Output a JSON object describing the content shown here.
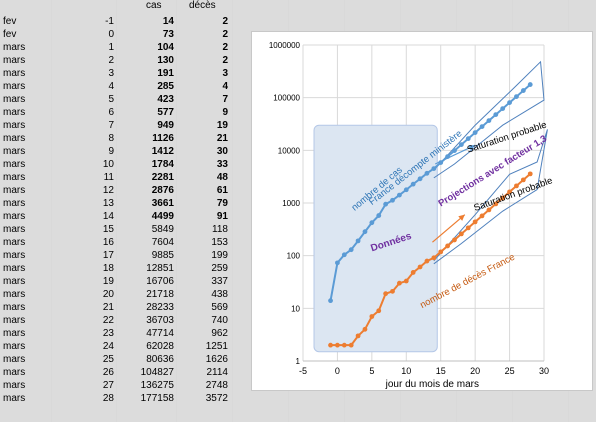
{
  "headers": {
    "cas": "cas",
    "deces": "décès"
  },
  "rows": [
    {
      "month": "fev",
      "day": "-1",
      "cas": "14",
      "deces": "2",
      "bold": true
    },
    {
      "month": "fev",
      "day": "0",
      "cas": "73",
      "deces": "2",
      "bold": true
    },
    {
      "month": "mars",
      "day": "1",
      "cas": "104",
      "deces": "2",
      "bold": true
    },
    {
      "month": "mars",
      "day": "2",
      "cas": "130",
      "deces": "2",
      "bold": true
    },
    {
      "month": "mars",
      "day": "3",
      "cas": "191",
      "deces": "3",
      "bold": true
    },
    {
      "month": "mars",
      "day": "4",
      "cas": "285",
      "deces": "4",
      "bold": true
    },
    {
      "month": "mars",
      "day": "5",
      "cas": "423",
      "deces": "7",
      "bold": true
    },
    {
      "month": "mars",
      "day": "6",
      "cas": "577",
      "deces": "9",
      "bold": true
    },
    {
      "month": "mars",
      "day": "7",
      "cas": "949",
      "deces": "19",
      "bold": true
    },
    {
      "month": "mars",
      "day": "8",
      "cas": "1126",
      "deces": "21",
      "bold": true
    },
    {
      "month": "mars",
      "day": "9",
      "cas": "1412",
      "deces": "30",
      "bold": true
    },
    {
      "month": "mars",
      "day": "10",
      "cas": "1784",
      "deces": "33",
      "bold": true
    },
    {
      "month": "mars",
      "day": "11",
      "cas": "2281",
      "deces": "48",
      "bold": true
    },
    {
      "month": "mars",
      "day": "12",
      "cas": "2876",
      "deces": "61",
      "bold": true
    },
    {
      "month": "mars",
      "day": "13",
      "cas": "3661",
      "deces": "79",
      "bold": true
    },
    {
      "month": "mars",
      "day": "14",
      "cas": "4499",
      "deces": "91",
      "bold": true
    },
    {
      "month": "mars",
      "day": "15",
      "cas": "5849",
      "deces": "118",
      "bold": false
    },
    {
      "month": "mars",
      "day": "16",
      "cas": "7604",
      "deces": "153",
      "bold": false
    },
    {
      "month": "mars",
      "day": "17",
      "cas": "9885",
      "deces": "199",
      "bold": false
    },
    {
      "month": "mars",
      "day": "18",
      "cas": "12851",
      "deces": "259",
      "bold": false
    },
    {
      "month": "mars",
      "day": "19",
      "cas": "16706",
      "deces": "337",
      "bold": false
    },
    {
      "month": "mars",
      "day": "20",
      "cas": "21718",
      "deces": "438",
      "bold": false
    },
    {
      "month": "mars",
      "day": "21",
      "cas": "28233",
      "deces": "569",
      "bold": false
    },
    {
      "month": "mars",
      "day": "22",
      "cas": "36703",
      "deces": "740",
      "bold": false
    },
    {
      "month": "mars",
      "day": "23",
      "cas": "47714",
      "deces": "962",
      "bold": false
    },
    {
      "month": "mars",
      "day": "24",
      "cas": "62028",
      "deces": "1251",
      "bold": false
    },
    {
      "month": "mars",
      "day": "25",
      "cas": "80636",
      "deces": "1626",
      "bold": false
    },
    {
      "month": "mars",
      "day": "26",
      "cas": "104827",
      "deces": "2114",
      "bold": false
    },
    {
      "month": "mars",
      "day": "27",
      "cas": "136275",
      "deces": "2748",
      "bold": false
    },
    {
      "month": "mars",
      "day": "28",
      "cas": "177158",
      "deces": "3572",
      "bold": false
    }
  ],
  "chart_data": {
    "type": "scatter",
    "xlabel": "jour du mois de mars",
    "x_ticks": [
      "-5",
      "0",
      "5",
      "10",
      "15",
      "20",
      "25",
      "30"
    ],
    "y_ticks": [
      "1000000",
      "100000",
      "10000",
      "1000",
      "100",
      "10",
      "1"
    ],
    "xlim": [
      -5,
      30
    ],
    "ylim": [
      1,
      1000000
    ],
    "y_scale": "log",
    "series": [
      {
        "color": "#5b9bd5",
        "x": [
          -1,
          0,
          1,
          2,
          3,
          4,
          5,
          6,
          7,
          8,
          9,
          10,
          11,
          12,
          13,
          14,
          15,
          16,
          17,
          18,
          19,
          20,
          21,
          22,
          23,
          24,
          25,
          26,
          27,
          28
        ],
        "values": [
          14,
          73,
          104,
          130,
          191,
          285,
          423,
          577,
          949,
          1126,
          1412,
          1784,
          2281,
          2876,
          3661,
          4499,
          5849,
          7604,
          9885,
          12851,
          16706,
          21718,
          28233,
          36703,
          47714,
          62028,
          80636,
          104827,
          136275,
          177158
        ]
      },
      {
        "color": "#ed7d31",
        "x": [
          -1,
          0,
          1,
          2,
          3,
          4,
          5,
          6,
          7,
          8,
          9,
          10,
          11,
          12,
          13,
          14,
          15,
          16,
          17,
          18,
          19,
          20,
          21,
          22,
          23,
          24,
          25,
          26,
          27,
          28
        ],
        "values": [
          2,
          2,
          2,
          2,
          3,
          4,
          7,
          9,
          19,
          21,
          30,
          33,
          48,
          61,
          79,
          91,
          118,
          153,
          199,
          259,
          337,
          438,
          569,
          740,
          962,
          1251,
          1626,
          2114,
          2748,
          3572
        ]
      }
    ],
    "annotations": {
      "donnees": "Données",
      "nombre_cas": "nombre de cas",
      "france_decompte": "France décompte ministère",
      "projections": "Projections avec facteur 1,3",
      "saturation1": "Saturation probable",
      "saturation2": "Saturation probable",
      "nombre_deces": "nombre de décès France"
    },
    "colors": {
      "blue": "#5b9bd5",
      "orange": "#ed7d31",
      "purple": "#7030a0",
      "shade": "#dce6f2",
      "shade_border": "#b4c7e7",
      "envelope": "#4f81bd"
    }
  }
}
